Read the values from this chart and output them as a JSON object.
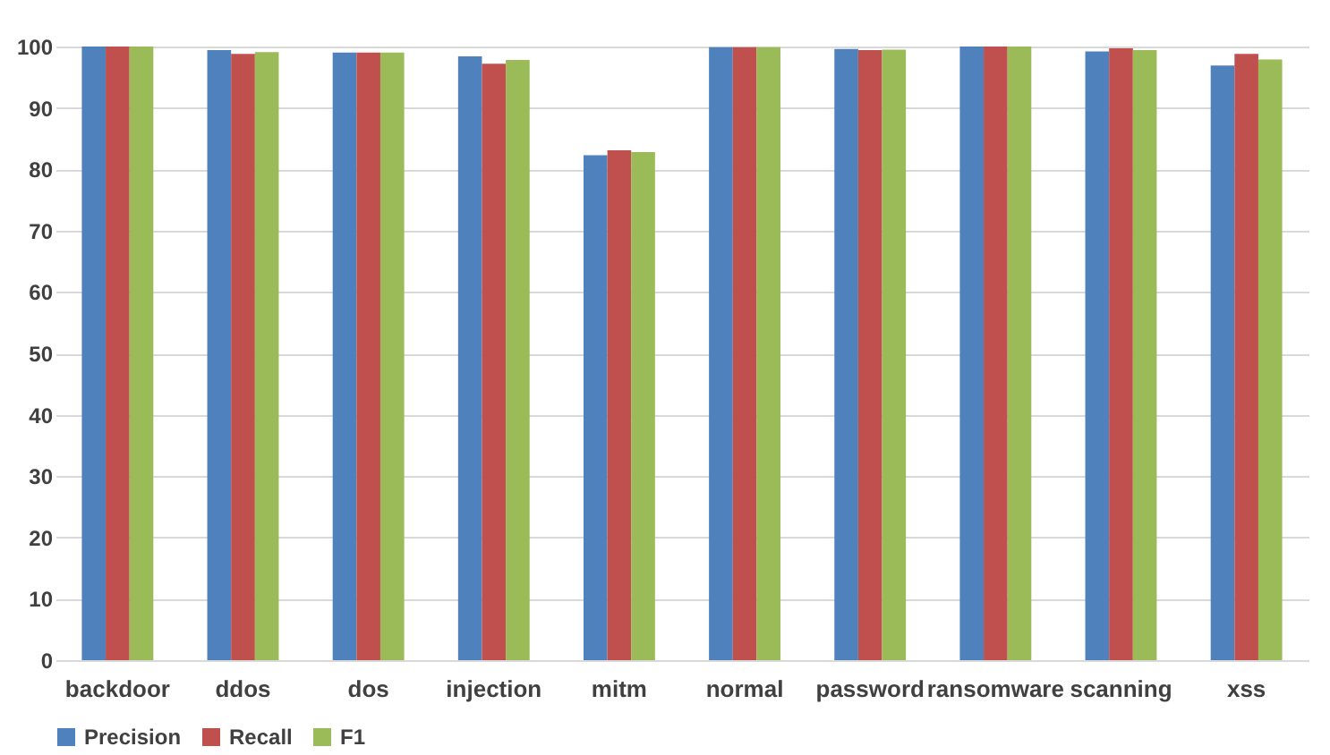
{
  "chart_data": {
    "type": "bar",
    "categories": [
      "backdoor",
      "ddos",
      "dos",
      "injection",
      "mitm",
      "normal",
      "password",
      "ransomware",
      "scanning",
      "xss"
    ],
    "series": [
      {
        "name": "Precision",
        "color": "#4f81bd",
        "values": [
          100,
          99.4,
          99,
          98.4,
          82.3,
          99.9,
          99.6,
          100,
          99.2,
          96.9
        ]
      },
      {
        "name": "Recall",
        "color": "#c0504d",
        "values": [
          100,
          98.8,
          99,
          97.2,
          83.1,
          99.9,
          99.4,
          100,
          99.7,
          98.8
        ]
      },
      {
        "name": "F1",
        "color": "#9bbb59",
        "values": [
          100,
          99.1,
          99,
          97.8,
          82.8,
          99.9,
          99.5,
          100,
          99.4,
          97.9
        ]
      }
    ],
    "ylim": [
      0,
      100
    ],
    "yticks": [
      0,
      10,
      20,
      30,
      40,
      50,
      60,
      70,
      80,
      90,
      100
    ],
    "grid": "y",
    "legend": "bottom"
  }
}
